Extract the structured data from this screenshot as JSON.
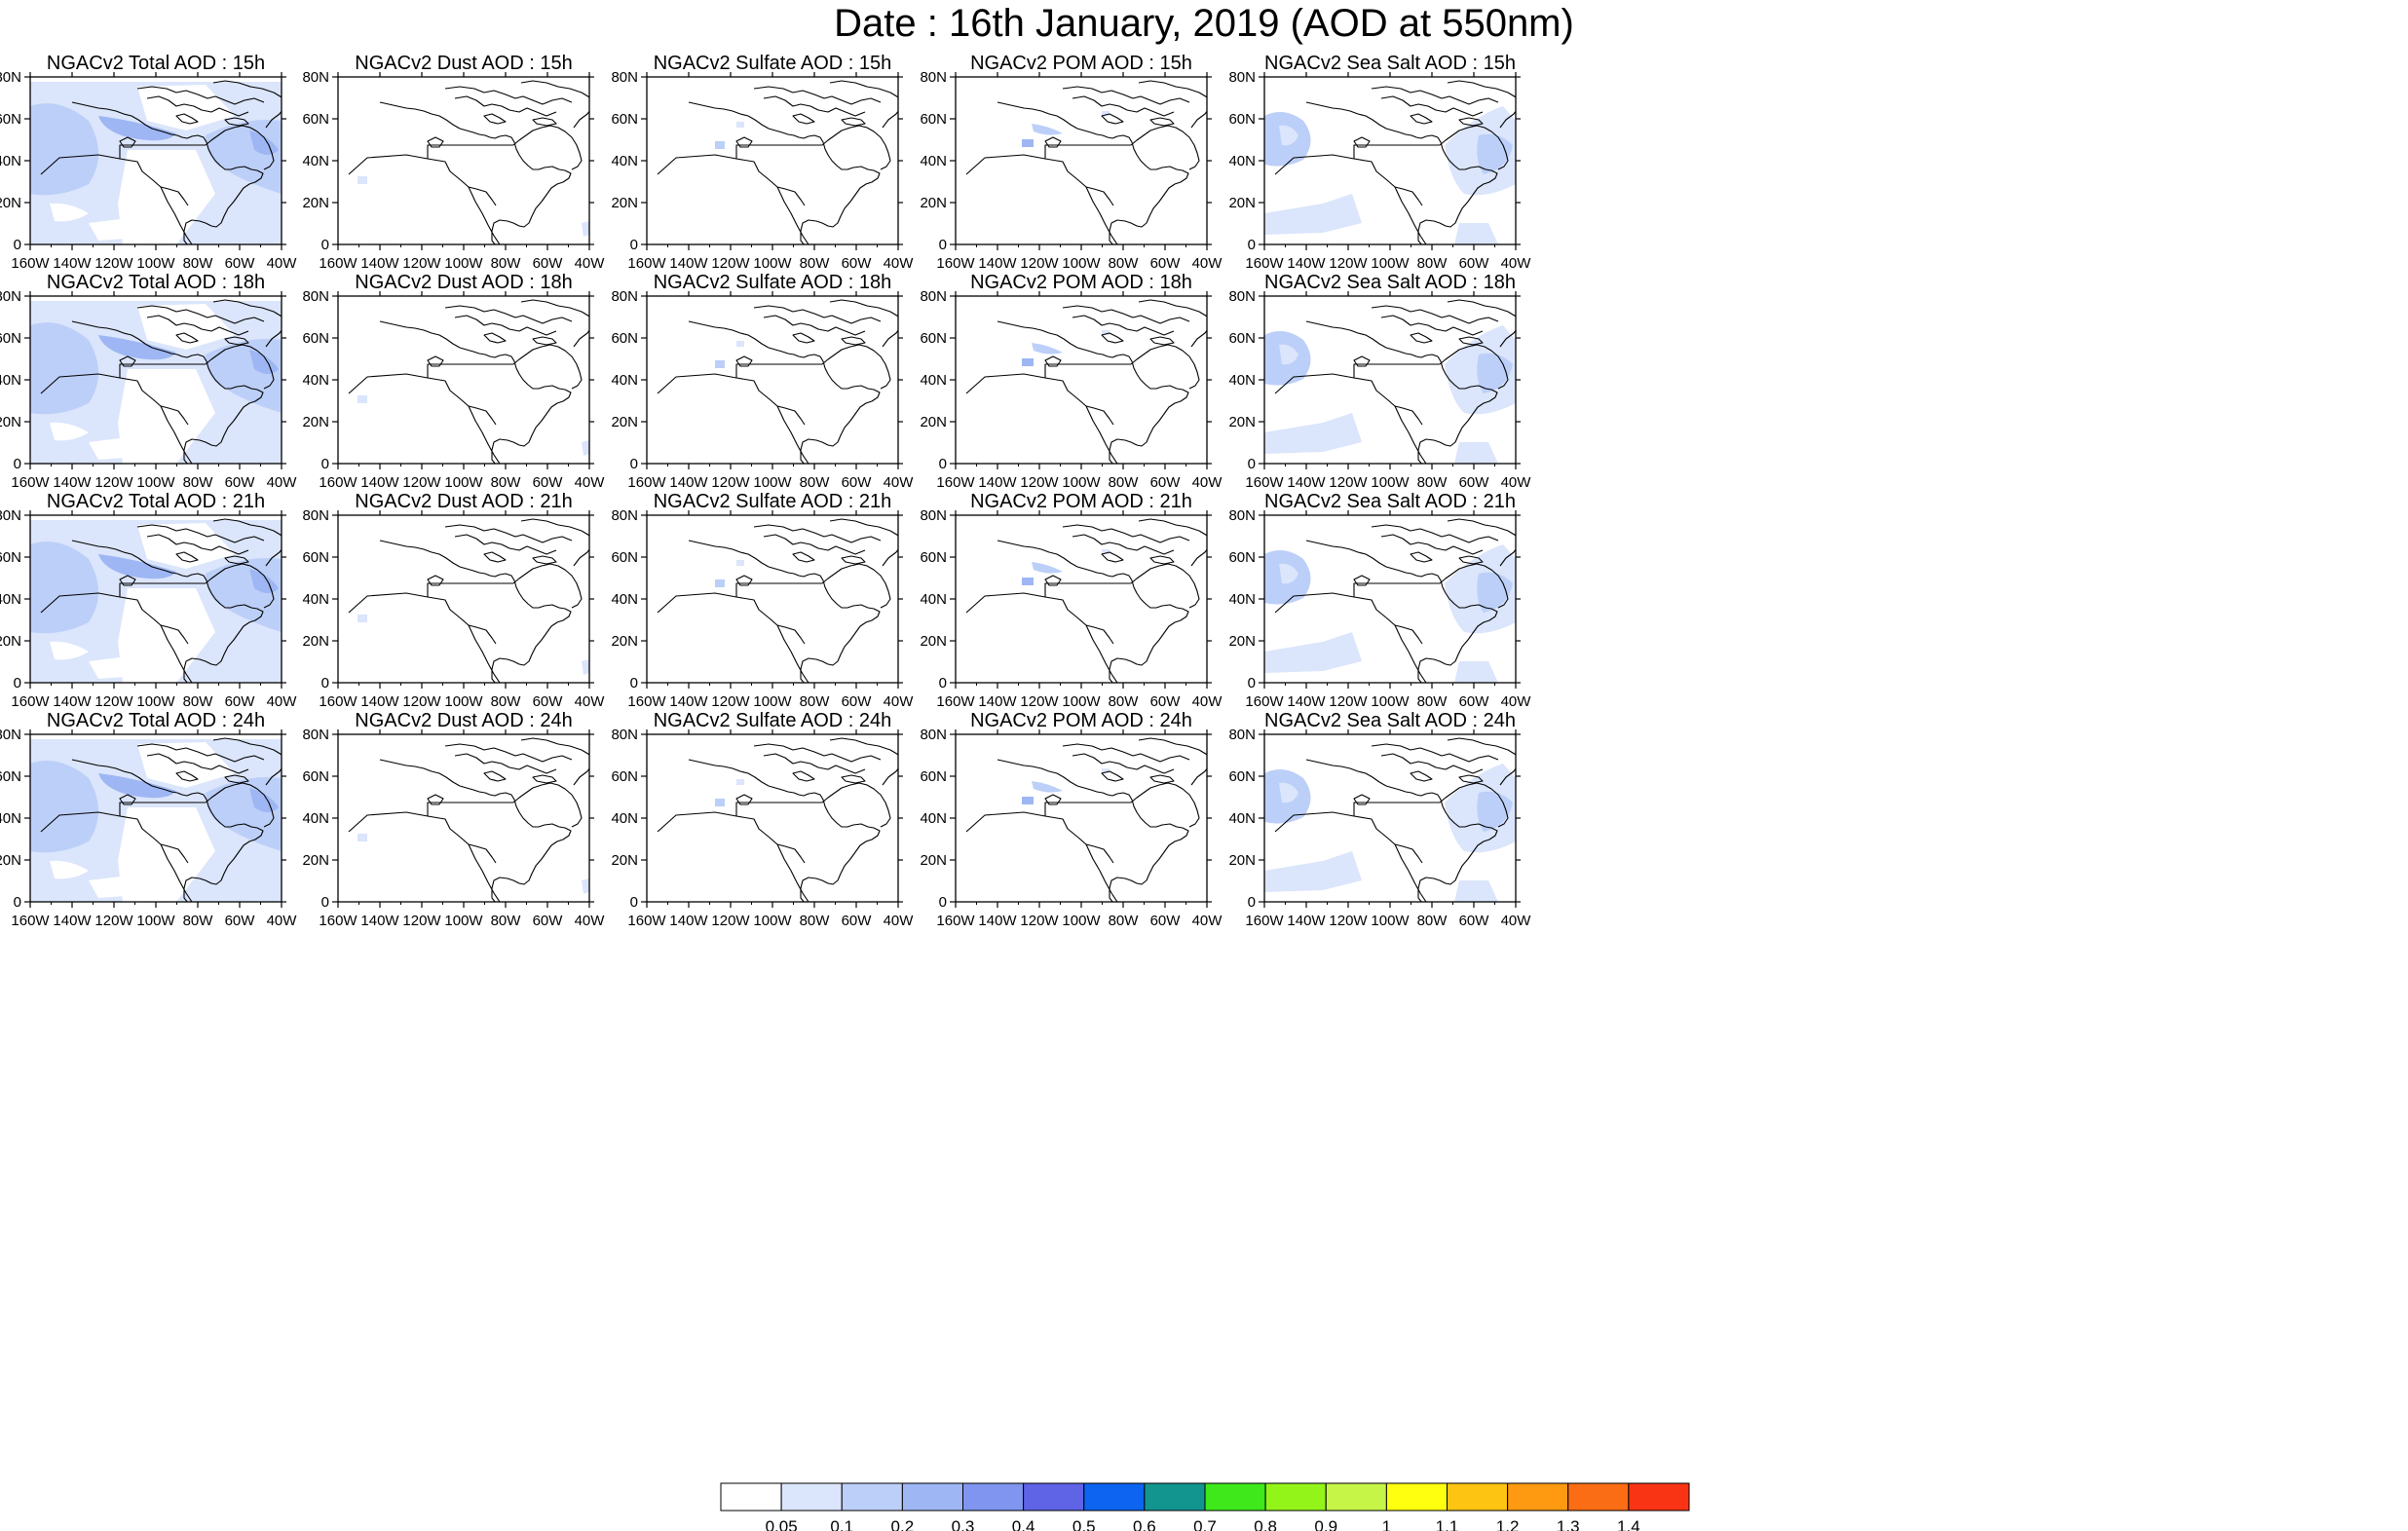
{
  "title": "Date : 16th January, 2019 (AOD at 550nm)",
  "columns": [
    "Total",
    "Dust",
    "Sulfate",
    "POM",
    "Sea Salt"
  ],
  "panels": [
    [
      {
        "title": "NGACv2 Total AOD : 15h",
        "field": "total"
      },
      {
        "title": "NGACv2 Dust AOD : 15h",
        "field": "dust"
      },
      {
        "title": "NGACv2 Sulfate AOD : 15h",
        "field": "sulfate"
      },
      {
        "title": "NGACv2 POM AOD : 15h",
        "field": "pom"
      },
      {
        "title": "NGACv2 Sea Salt AOD : 15h",
        "field": "seasalt"
      }
    ],
    [
      {
        "title": "NGACv2 Total AOD : 18h",
        "field": "total"
      },
      {
        "title": "NGACv2 Dust AOD : 18h",
        "field": "dust"
      },
      {
        "title": "NGACv2 Sulfate AOD : 18h",
        "field": "sulfate"
      },
      {
        "title": "NGACv2 POM AOD : 18h",
        "field": "pom"
      },
      {
        "title": "NGACv2 Sea Salt AOD : 18h",
        "field": "seasalt"
      }
    ],
    [
      {
        "title": "NGACv2 Total AOD : 21h",
        "field": "total"
      },
      {
        "title": "NGACv2 Dust AOD : 21h",
        "field": "dust"
      },
      {
        "title": "NGACv2 Sulfate AOD : 21h",
        "field": "sulfate"
      },
      {
        "title": "NGACv2 POM AOD : 21h",
        "field": "pom"
      },
      {
        "title": "NGACv2 Sea Salt AOD : 21h",
        "field": "seasalt"
      }
    ],
    [
      {
        "title": "NGACv2 Total AOD : 24h",
        "field": "total"
      },
      {
        "title": "NGACv2 Dust AOD : 24h",
        "field": "dust"
      },
      {
        "title": "NGACv2 Sulfate AOD : 24h",
        "field": "sulfate"
      },
      {
        "title": "NGACv2 POM AOD : 24h",
        "field": "pom"
      },
      {
        "title": "NGACv2 Sea Salt  AOD : 24h",
        "field": "seasalt"
      }
    ]
  ],
  "x_ticks": [
    "160W",
    "140W",
    "120W",
    "100W",
    "80W",
    "60W",
    "40W"
  ],
  "y_ticks": [
    "0",
    "20N",
    "40N",
    "60N",
    "80N"
  ],
  "map_extent": {
    "lon": [
      -160,
      -40
    ],
    "lat": [
      0,
      80
    ]
  },
  "colorbar": {
    "labels": [
      "0.05",
      "0.1",
      "0.2",
      "0.3",
      "0.4",
      "0.5",
      "0.6",
      "0.7",
      "0.8",
      "0.9",
      "1",
      "1.1",
      "1.2",
      "1.3",
      "1.4"
    ],
    "colors": [
      "#ffffff",
      "#dbe5fb",
      "#bccff8",
      "#9eb6f3",
      "#7f95ef",
      "#5f63e6",
      "#0d64f0",
      "#13958f",
      "#3ee81a",
      "#93f41a",
      "#c6f548",
      "#ffff10",
      "#fec412",
      "#fd9a12",
      "#fb6d14",
      "#f93414"
    ]
  },
  "shading_colors": {
    "level_1": "#dbe5fb",
    "level_2": "#bccff8",
    "level_3": "#9eb6f3"
  }
}
